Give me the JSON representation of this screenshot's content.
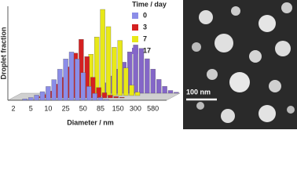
{
  "chart_data": {
    "type": "bar",
    "y_label": "Droplet fraction",
    "x_label": "Diameter / nm",
    "legend_title": "Time / day",
    "categories": [
      "2",
      null,
      null,
      "5",
      null,
      null,
      "10",
      null,
      null,
      "25",
      null,
      null,
      "50",
      null,
      null,
      "85",
      null,
      null,
      "150",
      null,
      null,
      "300",
      null,
      null,
      "580",
      null,
      null
    ],
    "ylim": [
      0,
      0.25
    ],
    "series": [
      {
        "name": "0",
        "color": "#8b8de8",
        "values": [
          0,
          0,
          0.004,
          0.008,
          0.015,
          0.025,
          0.04,
          0.06,
          0.09,
          0.12,
          0.14,
          0.12,
          0.08,
          0.04,
          0.02,
          0.008,
          0.003,
          0,
          0,
          0,
          0,
          0,
          0,
          0,
          0,
          0,
          0
        ]
      },
      {
        "name": "3",
        "color": "#d42020",
        "values": [
          0,
          0,
          0,
          0,
          0.004,
          0.01,
          0.02,
          0.04,
          0.06,
          0.09,
          0.13,
          0.17,
          0.12,
          0.06,
          0.03,
          0.015,
          0.008,
          0.004,
          0.002,
          0,
          0,
          0,
          0,
          0,
          0,
          0,
          0
        ]
      },
      {
        "name": "7",
        "color": "#e8e818",
        "values": [
          0,
          0,
          0,
          0,
          0,
          0,
          0,
          0,
          0,
          0,
          0.01,
          0.03,
          0.12,
          0.17,
          0.25,
          0.2,
          0.14,
          0.16,
          0.08,
          0.03,
          0.01,
          0,
          0,
          0,
          0,
          0,
          0
        ]
      },
      {
        "name": "17",
        "color": "#8466c8",
        "values": [
          0,
          0,
          0,
          0,
          0,
          0,
          0,
          0,
          0,
          0,
          0,
          0,
          0.005,
          0.015,
          0.03,
          0.05,
          0.07,
          0.09,
          0.12,
          0.14,
          0.13,
          0.1,
          0.07,
          0.04,
          0.02,
          0.008,
          0.003
        ]
      }
    ]
  },
  "image": {
    "scale_bar": "100 nm"
  }
}
